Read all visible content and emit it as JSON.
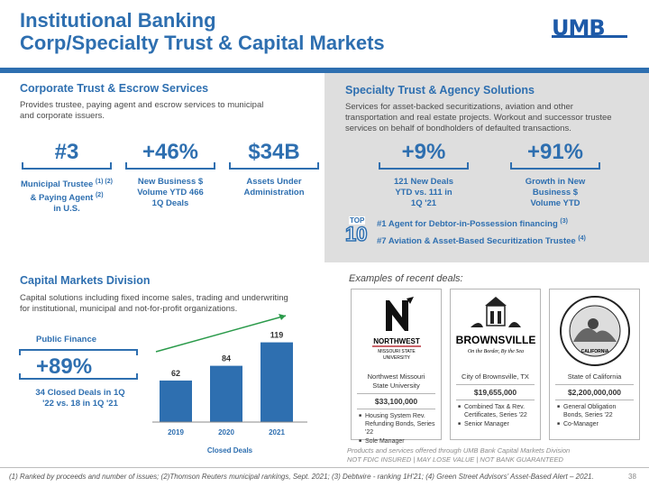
{
  "header": {
    "title_line1": "Institutional Banking",
    "title_line2": "Corp/Specialty Trust & Capital Markets",
    "logo_text": "UMB"
  },
  "colors": {
    "accent": "#2e6fb0",
    "panel_gray": "#dedede",
    "green": "#2a9a4a"
  },
  "corporate_trust": {
    "heading": "Corporate Trust & Escrow Services",
    "desc_line1": "Provides trustee, paying agent and escrow services to municipal",
    "desc_line2": "and corporate issuers.",
    "stats": [
      {
        "value": "#3",
        "line1": "Municipal Trustee",
        "sup1": "(1) (2)",
        "line2": "& Paying Agent",
        "sup2": "(2)",
        "line3": "in U.S."
      },
      {
        "value": "+46%",
        "line1": "New Business $",
        "line2": "Volume YTD 466",
        "line3": "1Q Deals"
      },
      {
        "value": "$34B",
        "line1": "Assets Under",
        "line2": "Administration"
      }
    ]
  },
  "specialty_trust": {
    "heading": "Specialty Trust & Agency Solutions",
    "desc_line1": "Services for asset-backed securitizations, aviation and other",
    "desc_line2": "transportation and real estate projects. Workout and successor trustee",
    "desc_line3": "services on behalf of bondholders of defaulted transactions.",
    "stats": [
      {
        "value": "+9%",
        "line1": "121 New Deals",
        "line2": "YTD vs. 111 in",
        "line3": "1Q '21"
      },
      {
        "value": "+91%",
        "line1": "Growth in New",
        "line2": "Business $",
        "line3": "Volume YTD"
      }
    ],
    "top10_label": "TOP",
    "top10_number": "10",
    "rankings": [
      {
        "text": "#1 Agent for Debtor-in-Possession financing",
        "sup": "(3)"
      },
      {
        "text": "#7 Aviation & Asset-Based Securitization Trustee",
        "sup": "(4)"
      }
    ]
  },
  "capital_markets": {
    "heading": "Capital Markets Division",
    "desc_line1": "Capital solutions including fixed income sales, trading and underwriting",
    "desc_line2": "for institutional, municipal and not-for-profit organizations.",
    "public_finance_label": "Public Finance",
    "public_finance_value": "+89%",
    "public_finance_sub1": "34 Closed Deals in 1Q",
    "public_finance_sub2": "'22 vs. 18 in 1Q '21"
  },
  "chart_data": {
    "type": "bar",
    "categories": [
      "2019",
      "2020",
      "2021"
    ],
    "values": [
      62,
      84,
      119
    ],
    "xlabel": "Closed Deals",
    "ylim": [
      0,
      140
    ],
    "grid": false,
    "bar_color": "#2e6fb0"
  },
  "examples": {
    "heading": "Examples of recent deals:",
    "cards": [
      {
        "logo_text1": "NORTHWEST",
        "logo_text2": "MISSOURI STATE",
        "logo_text3": "UNIVERSITY",
        "name_line1": "Northwest Missouri",
        "name_line2": "State University",
        "amount": "$33,100,000",
        "bullets": [
          "Housing System Rev. Refunding Bonds, Series '22",
          "Sole Manager"
        ]
      },
      {
        "logo_text1": "BROWNSVILLE",
        "logo_text2": "On the Border, By the Sea",
        "name_line1": "City of Brownsville, TX",
        "name_line2": "",
        "amount": "$19,655,000",
        "bullets": [
          "Combined Tax & Rev. Certificates, Series '22",
          "Senior Manager"
        ]
      },
      {
        "logo_text1": "CALIFORNIA",
        "name_line1": "State of California",
        "name_line2": "",
        "amount": "$2,200,000,000",
        "bullets": [
          "General Obligation Bonds, Series '22",
          "Co-Manager"
        ]
      }
    ]
  },
  "disclaimer_line1": "Products and services offered through UMB Bank Capital Markets Division",
  "disclaimer_line2": "NOT FDIC INSURED | MAY LOSE VALUE  | NOT BANK GUARANTEED",
  "footnote": "(1) Ranked by proceeds and number of issues; (2)Thomson Reuters municipal rankings, Sept. 2021; (3) Debtwire - ranking 1H'21; (4) Green Street Advisors' Asset-Based Alert – 2021.",
  "page_number": "38"
}
